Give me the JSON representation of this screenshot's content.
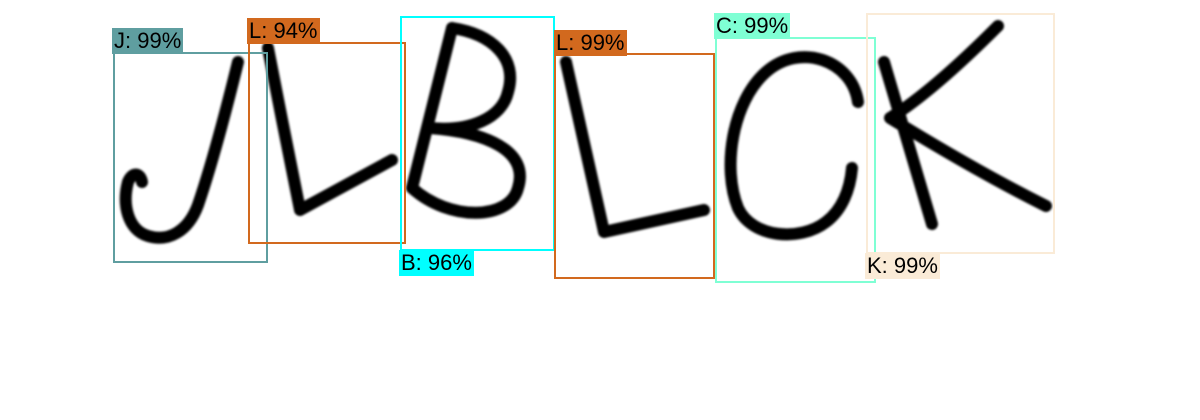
{
  "detections": [
    {
      "letter": "J",
      "label": "J: 99%",
      "color": "#5f9ea0",
      "label_position": "top"
    },
    {
      "letter": "L",
      "label": "L: 94%",
      "color": "#d2691e",
      "label_position": "top"
    },
    {
      "letter": "B",
      "label": "B: 96%",
      "color": "#00ffff",
      "label_position": "bottom"
    },
    {
      "letter": "L",
      "label": "L: 99%",
      "color": "#d2691e",
      "label_position": "top"
    },
    {
      "letter": "C",
      "label": "C: 99%",
      "color": "#7fffd4",
      "label_position": "top"
    },
    {
      "letter": "K",
      "label": "K: 99%",
      "color": "#faebd7",
      "label_position": "bottom"
    }
  ]
}
